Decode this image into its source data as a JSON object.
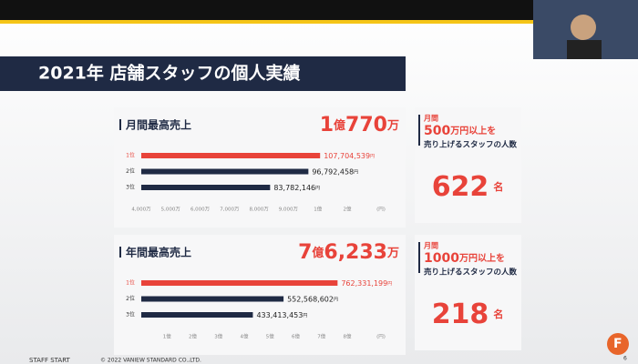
{
  "slide": {
    "title": "2021年 店舗スタッフの個人実績",
    "footer": "STAFF START",
    "copyright": "© 2022 VANIEW STANDARD CO.,LTD.",
    "page": "6"
  },
  "chart_data": [
    {
      "type": "bar",
      "orientation": "horizontal",
      "title": "月間最高売上",
      "highlight": [
        "1",
        "億",
        "770",
        "万"
      ],
      "categories": [
        "1位",
        "2位",
        "3位"
      ],
      "values": [
        107704539,
        96792458,
        83782146
      ],
      "value_labels": [
        "107,704,539",
        "96,792,458",
        "83,782,146"
      ],
      "value_unit": "円",
      "colors": [
        "#e8433a",
        "#1f2a44",
        "#1f2a44"
      ],
      "scale": "piecewise",
      "xlim": [
        40000000,
        200000000
      ],
      "xticks": [
        {
          "value": 40000000,
          "label": "4,000万"
        },
        {
          "value": 50000000,
          "label": "5,000万"
        },
        {
          "value": 60000000,
          "label": "6,000万"
        },
        {
          "value": 70000000,
          "label": "7,000万"
        },
        {
          "value": 80000000,
          "label": "8,000万"
        },
        {
          "value": 90000000,
          "label": "9,000万"
        },
        {
          "value": 100000000,
          "label": "1億"
        },
        {
          "value": 200000000,
          "label": "2億"
        }
      ],
      "x_unit": "(円)"
    },
    {
      "type": "bar",
      "orientation": "horizontal",
      "title": "年間最高売上",
      "highlight": [
        "7",
        "億",
        "6,233",
        "万"
      ],
      "categories": [
        "1位",
        "2位",
        "3位"
      ],
      "values": [
        762331199,
        552568602,
        433413453
      ],
      "value_labels": [
        "762,331,199",
        "552,568,602",
        "433,413,453"
      ],
      "value_unit": "円",
      "colors": [
        "#e8433a",
        "#1f2a44",
        "#1f2a44"
      ],
      "scale": "linear",
      "xlim": [
        0,
        800000000
      ],
      "xticks": [
        {
          "value": 100000000,
          "label": "1億"
        },
        {
          "value": 200000000,
          "label": "2億"
        },
        {
          "value": 300000000,
          "label": "3億"
        },
        {
          "value": 400000000,
          "label": "4億"
        },
        {
          "value": 500000000,
          "label": "5億"
        },
        {
          "value": 600000000,
          "label": "6億"
        },
        {
          "value": 700000000,
          "label": "7億"
        },
        {
          "value": 800000000,
          "label": "8億"
        }
      ],
      "x_unit": "(円)"
    }
  ],
  "panels": [
    {
      "period": "月間",
      "amount": "500",
      "amount_unit": "万円以上を",
      "subject": "売り上げるスタッフの人数",
      "count": 622,
      "count_unit": "名"
    },
    {
      "period": "月間",
      "amount": "1000",
      "amount_unit": "万円以上を",
      "subject": "売り上げるスタッフの人数",
      "count": 218,
      "count_unit": "名"
    }
  ]
}
